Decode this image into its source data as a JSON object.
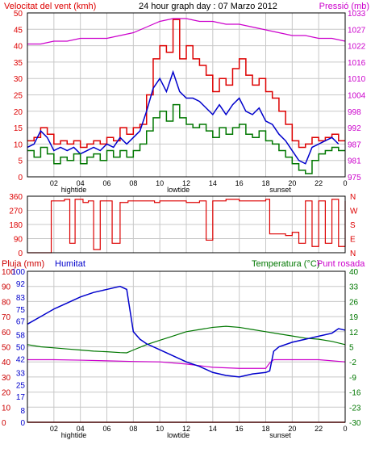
{
  "header": {
    "left_title": "Velocitat del vent (kmh)",
    "center_title": "24 hour graph day : 07 Marzo 2012",
    "right_title": "Pressió (mb)"
  },
  "lower_header": {
    "rain_label": "Pluja (mm)",
    "humidity_label": "Humitat",
    "temperature_label": "Temperatura (°C)",
    "dewpoint_label": "Punt rosada"
  },
  "colors": {
    "wind_gust": "#dd0000",
    "wind_avg": "#0000cc",
    "wind_speed": "#007700",
    "pressure": "#cc00cc",
    "direction": "#dd0000",
    "humidity": "#0000cc",
    "temperature": "#007700",
    "dewpoint": "#cc00cc",
    "rain": "#cc0000",
    "grid": "#c8c8c8"
  },
  "chart_data": [
    {
      "type": "line",
      "id": "wind_pressure",
      "x_ticks": [
        "02",
        "04",
        "06",
        "08",
        "10",
        "12",
        "14",
        "16",
        "18",
        "20",
        "22",
        "0"
      ],
      "x_range": [
        0,
        24
      ],
      "events": [
        {
          "label": "hightide",
          "x": 3.5
        },
        {
          "label": "lowtide",
          "x": 11.4
        },
        {
          "label": "sunset",
          "x": 19.1
        }
      ],
      "left_axis": {
        "ticks": [
          0,
          5,
          10,
          15,
          20,
          25,
          30,
          35,
          40,
          45,
          50
        ],
        "range": [
          0,
          50
        ]
      },
      "right_axis": {
        "ticks": [
          975,
          981,
          987,
          992,
          998,
          1004,
          1010,
          1016,
          1022,
          1027,
          1033
        ],
        "range": [
          975,
          1033
        ]
      },
      "series": [
        {
          "key": "gust",
          "axis": "left",
          "x": [
            0,
            0.5,
            1,
            1.5,
            2,
            2.5,
            3,
            3.5,
            4,
            4.5,
            5,
            5.5,
            6,
            6.5,
            7,
            7.5,
            8,
            8.5,
            9,
            9.5,
            10,
            10.5,
            11,
            11.5,
            12,
            12.5,
            13,
            13.5,
            14,
            14.5,
            15,
            15.5,
            16,
            16.5,
            17,
            17.5,
            18,
            18.5,
            19,
            19.5,
            20,
            20.5,
            21,
            21.5,
            22,
            22.5,
            23,
            23.5
          ],
          "values": [
            11,
            12,
            15,
            13,
            10,
            11,
            10,
            11,
            9,
            10,
            11,
            10,
            12,
            11,
            15,
            13,
            15,
            16,
            25,
            36,
            40,
            38,
            48,
            36,
            40,
            36,
            34,
            31,
            26,
            30,
            28,
            33,
            36,
            31,
            28,
            30,
            26,
            24,
            20,
            16,
            11,
            9,
            10,
            12,
            11,
            12,
            13,
            11
          ]
        },
        {
          "key": "avg",
          "axis": "left",
          "x": [
            0,
            0.5,
            1,
            1.5,
            2,
            2.5,
            3,
            3.5,
            4,
            4.5,
            5,
            5.5,
            6,
            6.5,
            7,
            7.5,
            8,
            8.5,
            9,
            9.5,
            10,
            10.5,
            11,
            11.5,
            12,
            12.5,
            13,
            13.5,
            14,
            14.5,
            15,
            15.5,
            16,
            16.5,
            17,
            17.5,
            18,
            18.5,
            19,
            19.5,
            20,
            20.5,
            21,
            21.5,
            22,
            22.5,
            23,
            23.5
          ],
          "values": [
            9,
            10,
            14,
            12,
            8,
            9,
            8,
            9,
            7,
            8,
            9,
            8,
            10,
            9,
            12,
            10,
            12,
            14,
            20,
            27,
            30,
            26,
            32,
            26,
            24,
            24,
            23,
            21,
            19,
            22,
            19,
            22,
            24,
            20,
            19,
            21,
            17,
            16,
            13,
            11,
            8,
            5,
            4,
            9,
            10,
            11,
            12,
            10
          ]
        },
        {
          "key": "speed",
          "axis": "left",
          "x": [
            0,
            0.5,
            1,
            1.5,
            2,
            2.5,
            3,
            3.5,
            4,
            4.5,
            5,
            5.5,
            6,
            6.5,
            7,
            7.5,
            8,
            8.5,
            9,
            9.5,
            10,
            10.5,
            11,
            11.5,
            12,
            12.5,
            13,
            13.5,
            14,
            14.5,
            15,
            15.5,
            16,
            16.5,
            17,
            17.5,
            18,
            18.5,
            19,
            19.5,
            20,
            20.5,
            21,
            21.5,
            22,
            22.5,
            23,
            23.5
          ],
          "values": [
            8,
            6,
            9,
            7,
            4,
            6,
            5,
            7,
            4,
            6,
            7,
            5,
            8,
            6,
            8,
            6,
            8,
            10,
            14,
            18,
            20,
            17,
            22,
            18,
            16,
            15,
            16,
            14,
            12,
            15,
            13,
            15,
            16,
            13,
            12,
            14,
            11,
            10,
            8,
            6,
            4,
            2,
            1,
            5,
            7,
            8,
            9,
            8
          ]
        },
        {
          "key": "pressure",
          "axis": "right",
          "x": [
            0,
            1,
            2,
            3,
            4,
            5,
            6,
            7,
            8,
            9,
            10,
            11,
            12,
            13,
            14,
            15,
            16,
            17,
            18,
            19,
            20,
            21,
            22,
            23,
            24
          ],
          "values": [
            1022,
            1022,
            1023,
            1023,
            1024,
            1024,
            1024,
            1025,
            1026,
            1028,
            1030,
            1031,
            1031,
            1030,
            1030,
            1029,
            1029,
            1028,
            1027,
            1026,
            1025,
            1025,
            1024,
            1024,
            1023
          ]
        }
      ]
    },
    {
      "type": "line",
      "id": "wind_direction",
      "x_range": [
        0,
        24
      ],
      "left_axis": {
        "ticks": [
          0,
          90,
          180,
          270,
          360
        ],
        "range": [
          0,
          360
        ]
      },
      "right_labels": [
        "N",
        "W",
        "S",
        "E",
        "N"
      ],
      "series": [
        {
          "key": "direction",
          "axis": "left",
          "x": [
            0,
            1.5,
            1.8,
            2.5,
            2.8,
            3.2,
            3.6,
            4.2,
            4.6,
            5.0,
            5.5,
            6.0,
            6.4,
            7.0,
            7.6,
            8.0,
            8.6,
            9.0,
            9.6,
            10.0,
            12.0,
            13.0,
            13.5,
            14.0,
            15.0,
            16.0,
            17.0,
            18.0,
            18.3,
            19.5,
            20.0,
            20.5,
            21.0,
            21.5,
            22.0,
            22.5,
            23.0,
            23.5,
            24
          ],
          "values": [
            0,
            0,
            330,
            330,
            340,
            60,
            340,
            320,
            330,
            20,
            330,
            330,
            60,
            320,
            330,
            330,
            330,
            330,
            320,
            330,
            320,
            330,
            80,
            330,
            340,
            330,
            330,
            340,
            120,
            110,
            130,
            60,
            330,
            40,
            330,
            60,
            340,
            40,
            330
          ]
        }
      ]
    },
    {
      "type": "line",
      "id": "humidity_temperature",
      "x_range": [
        0,
        24
      ],
      "left_axis_rain": {
        "ticks": [
          0,
          10,
          20,
          30,
          40,
          50,
          60,
          70,
          80,
          90,
          100
        ],
        "range": [
          0,
          100
        ]
      },
      "left_axis_humidity": {
        "ticks": [
          0,
          8,
          17,
          25,
          33,
          42,
          50,
          58,
          67,
          75,
          83,
          92,
          100
        ],
        "range": [
          0,
          100
        ]
      },
      "right_axis": {
        "ticks": [
          -30,
          -23,
          -16,
          -9,
          -2,
          5,
          12,
          19,
          26,
          33,
          40
        ],
        "range": [
          -30,
          40
        ]
      },
      "series": [
        {
          "key": "humidity",
          "axis": "humidity",
          "x": [
            0,
            1,
            2,
            3,
            4,
            5,
            6,
            7,
            7.5,
            8,
            8.5,
            9,
            10,
            11,
            12,
            13,
            14,
            15,
            16,
            17,
            18,
            18.3,
            18.6,
            19,
            20,
            21,
            22,
            23,
            23.5,
            24
          ],
          "values": [
            65,
            70,
            75,
            79,
            83,
            86,
            88,
            90,
            88,
            60,
            55,
            52,
            48,
            44,
            40,
            37,
            33,
            31,
            30,
            32,
            33,
            34,
            47,
            50,
            53,
            55,
            57,
            59,
            62,
            61
          ]
        },
        {
          "key": "temperature",
          "axis": "right",
          "x": [
            0,
            1,
            2,
            3,
            4,
            5,
            6,
            7,
            7.5,
            8,
            9,
            10,
            11,
            12,
            13,
            14,
            15,
            16,
            17,
            18,
            19,
            20,
            21,
            22,
            23,
            24
          ],
          "values": [
            6,
            5,
            4.5,
            4,
            3.5,
            3,
            2.7,
            2.3,
            2.2,
            3.5,
            6,
            8,
            10,
            12,
            13,
            14,
            14.5,
            14,
            13,
            12,
            11,
            10,
            9,
            8.5,
            7.5,
            6
          ]
        },
        {
          "key": "dewpoint",
          "axis": "right",
          "x": [
            0,
            2,
            4,
            6,
            8,
            10,
            12,
            14,
            16,
            18,
            18.3,
            18.6,
            20,
            22,
            24
          ],
          "values": [
            -1,
            -1,
            -1.2,
            -1.5,
            -1.8,
            -2,
            -3,
            -4.5,
            -5,
            -5,
            -2.5,
            -1,
            -1,
            -1,
            -2
          ]
        },
        {
          "key": "rain",
          "axis": "rain",
          "x": [
            0,
            24
          ],
          "values": [
            0,
            0
          ]
        }
      ]
    }
  ]
}
